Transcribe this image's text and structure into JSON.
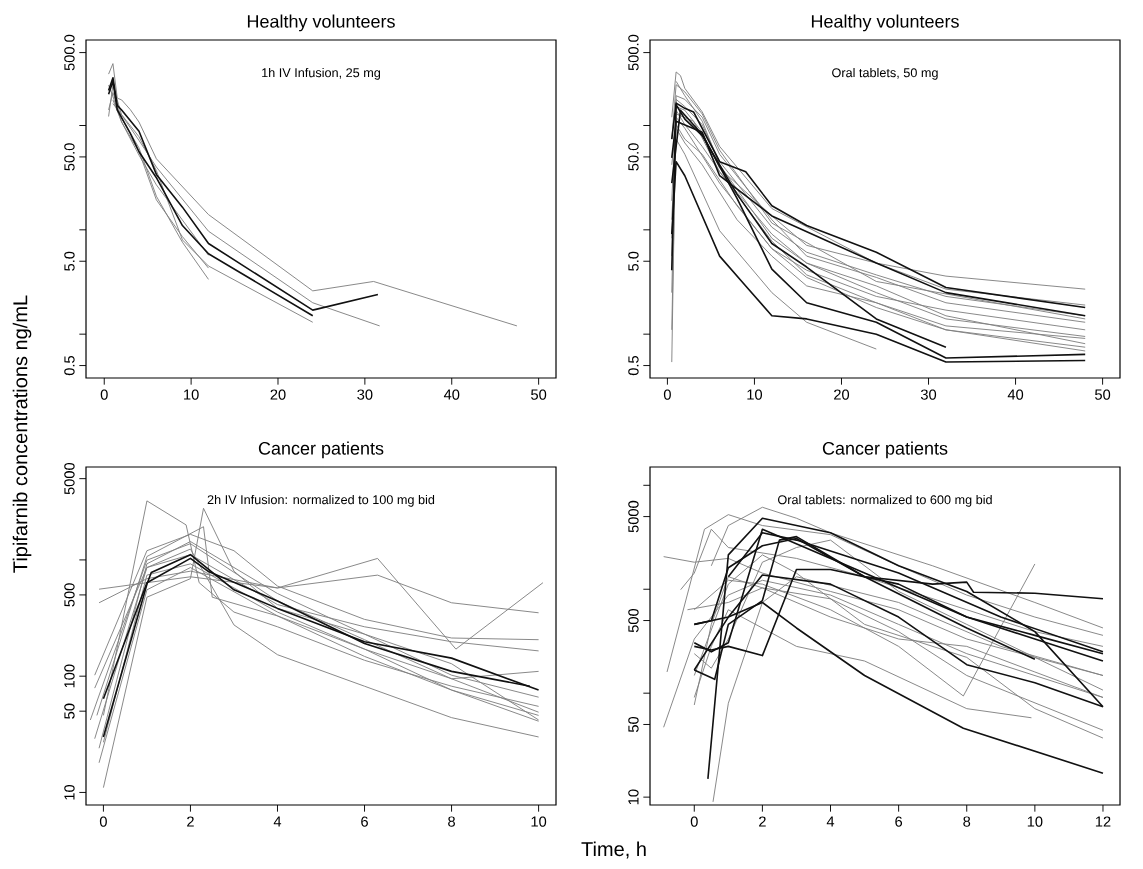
{
  "chart_data": [
    {
      "type": "line",
      "title": "Healthy volunteers",
      "ylabel": "Tipifarnib concentrations  ng/mL",
      "annotations": [
        "1h IV Infusion, 25 mg"
      ],
      "log": true,
      "xlim": [
        -2.1,
        52
      ],
      "ylim": [
        0.38,
        660
      ],
      "xticks": [
        0,
        10,
        20,
        30,
        40,
        50
      ],
      "yticks": [
        {
          "value": 0.5,
          "label": "0.5"
        },
        {
          "value": 1,
          "label": null
        },
        {
          "value": 5,
          "label": "5.0"
        },
        {
          "value": 10,
          "label": null
        },
        {
          "value": 50,
          "label": "50.0"
        },
        {
          "value": 100,
          "label": null
        },
        {
          "value": 500,
          "label": "500.0"
        }
      ],
      "series": [
        {
          "color": "#808080",
          "x": [
            0.5,
            1,
            1.5,
            2,
            3,
            4,
            6,
            12,
            24,
            31,
            47.5
          ],
          "values": [
            311,
            392,
            183,
            176,
            142,
            108,
            48,
            14,
            2.6,
            3.2,
            1.2
          ]
        },
        {
          "color": "#808080",
          "x": [
            0.5,
            1,
            2,
            4,
            6,
            12,
            24,
            31.7
          ],
          "values": [
            122,
            244,
            126,
            72,
            40,
            9.7,
            2.0,
            1.2
          ]
        },
        {
          "color": "#808080",
          "x": [
            0.5,
            1,
            2,
            4,
            6,
            9,
            12
          ],
          "values": [
            141,
            207,
            117,
            61,
            21,
            7.6,
            3.35
          ]
        },
        {
          "color": "#808080",
          "x": [
            0.5,
            1,
            2,
            4,
            6,
            9,
            12
          ],
          "values": [
            244,
            190,
            108,
            56,
            19.4,
            8.6,
            4.3
          ]
        },
        {
          "color": "#808080",
          "x": [
            1,
            2,
            4,
            6,
            12
          ],
          "values": [
            176,
            108,
            52,
            27,
            5.7
          ]
        },
        {
          "color": "#808080",
          "x": [
            1,
            4,
            6,
            9,
            12,
            24
          ],
          "values": [
            162,
            78,
            37,
            8,
            4.5,
            1.3
          ]
        },
        {
          "color": "#111111",
          "x": [
            0.5,
            1,
            1.5,
            2,
            4,
            6,
            9,
            12,
            24,
            31.5
          ],
          "values": [
            216,
            287,
            156,
            141,
            88,
            34,
            16.5,
            7.4,
            1.7,
            2.4
          ]
        },
        {
          "color": "#111111",
          "x": [
            0.5,
            1,
            1.5,
            3,
            4,
            6,
            9,
            12,
            24
          ],
          "values": [
            199,
            265,
            141,
            84,
            56,
            31.6,
            11,
            5.9,
            1.5
          ]
        }
      ]
    },
    {
      "type": "line",
      "title": "Healthy volunteers",
      "annotations": [
        "Oral tablets, 50 mg"
      ],
      "log": true,
      "xlim": [
        -2,
        52
      ],
      "ylim": [
        0.38,
        660
      ],
      "xticks": [
        0,
        10,
        20,
        30,
        40,
        50
      ],
      "yticks": [
        {
          "value": 0.5,
          "label": "0.5"
        },
        {
          "value": 1,
          "label": null
        },
        {
          "value": 5,
          "label": "5.0"
        },
        {
          "value": 10,
          "label": null
        },
        {
          "value": 50,
          "label": "50.0"
        },
        {
          "value": 100,
          "label": null
        },
        {
          "value": 500,
          "label": "500.0"
        }
      ],
      "series": [
        {
          "color": "#808080",
          "x": [
            0.5,
            1,
            1.5,
            2,
            4,
            6,
            12,
            24,
            32,
            48
          ],
          "values": [
            120,
            326,
            301,
            227,
            135,
            63,
            16,
            4.8,
            3.6,
            2.7
          ]
        },
        {
          "color": "#808080",
          "x": [
            0.5,
            1,
            2,
            4,
            6,
            12,
            16,
            24,
            32,
            48
          ],
          "values": [
            0.54,
            193,
            178,
            120,
            53,
            12.5,
            5.6,
            3.5,
            2.0,
            1.3
          ]
        },
        {
          "color": "#808080",
          "x": [
            0.5,
            1,
            2,
            4,
            6,
            12,
            16,
            24,
            32,
            48
          ],
          "values": [
            2.5,
            140,
            102,
            63,
            36,
            9.1,
            4.8,
            2.5,
            1.4,
            0.95
          ]
        },
        {
          "color": "#808080",
          "x": [
            0.5,
            1,
            2,
            4,
            8,
            12,
            16,
            24,
            32,
            48
          ],
          "values": [
            12.5,
            94,
            68,
            42,
            12.5,
            5.6,
            2.9,
            2.0,
            1.1,
            0.75
          ]
        },
        {
          "color": "#808080",
          "x": [
            0.5,
            1,
            2,
            4,
            6,
            12,
            16,
            24,
            32,
            48
          ],
          "values": [
            5.6,
            178,
            152,
            102,
            45,
            10.6,
            6.1,
            3.7,
            2.3,
            1.5
          ]
        },
        {
          "color": "#808080",
          "x": [
            0.5,
            1,
            2,
            6,
            12,
            16,
            24,
            32,
            48
          ],
          "values": [
            1.1,
            120,
            94,
            28,
            6.6,
            4.1,
            2.3,
            1.7,
            1.1
          ]
        },
        {
          "color": "#808080",
          "x": [
            0.5,
            1,
            2,
            4,
            6,
            12,
            24,
            48
          ],
          "values": [
            74,
            246,
            210,
            129,
            58,
            11.6,
            3.2,
            1.4
          ]
        },
        {
          "color": "#808080",
          "x": [
            1,
            2,
            4,
            6,
            12,
            16,
            24,
            32,
            48
          ],
          "values": [
            265,
            193,
            110,
            42,
            8.3,
            4.8,
            2.9,
            1.5,
            0.81
          ]
        },
        {
          "color": "#808080",
          "x": [
            0.5,
            1,
            2,
            6,
            12,
            16,
            24
          ],
          "values": [
            8.3,
            74,
            53,
            9.8,
            2.5,
            1.3,
            0.72
          ]
        },
        {
          "color": "#808080",
          "x": [
            0.5,
            1,
            2,
            4,
            6,
            12,
            16,
            24,
            32,
            48
          ],
          "values": [
            19,
            152,
            140,
            86,
            39,
            13.6,
            7.1,
            4.8,
            2.7,
            1.9
          ]
        },
        {
          "color": "#808080",
          "x": [
            1,
            3,
            6,
            12,
            16,
            24,
            32,
            48
          ],
          "values": [
            129,
            110,
            36,
            7.8,
            3.7,
            2.0,
            1.2,
            0.91
          ]
        },
        {
          "color": "#808080",
          "x": [
            0.5,
            1,
            2,
            4,
            8,
            12,
            16,
            24,
            32,
            48
          ],
          "values": [
            42,
            102,
            74,
            53,
            17,
            6.6,
            3.5,
            1.8,
            1.1,
            0.69
          ]
        },
        {
          "color": "#111111",
          "x": [
            0.5,
            1,
            2,
            3,
            6,
            9,
            12,
            16,
            24,
            32,
            48
          ],
          "values": [
            74,
            164,
            146,
            135,
            45,
            36,
            17,
            11,
            6.1,
            2.8,
            1.8
          ]
        },
        {
          "color": "#111111",
          "x": [
            0.5,
            1,
            4,
            6,
            12,
            24,
            32,
            48
          ],
          "values": [
            49,
            110,
            86,
            33,
            13.6,
            4.8,
            2.5,
            1.5
          ]
        },
        {
          "color": "#111111",
          "x": [
            0.5,
            1,
            2,
            6,
            9,
            12,
            16,
            24,
            32,
            48
          ],
          "values": [
            9.1,
            45,
            33,
            5.6,
            2.9,
            1.5,
            1.4,
            1.0,
            0.54,
            0.56
          ]
        },
        {
          "color": "#111111",
          "x": [
            0.5,
            1,
            2,
            4,
            8,
            12,
            16,
            24,
            32
          ],
          "values": [
            4.1,
            158,
            115,
            80,
            22,
            7.4,
            4.4,
            1.4,
            0.75
          ]
        },
        {
          "color": "#111111",
          "x": [
            0.5,
            1.5,
            4,
            8,
            12,
            16,
            24,
            32,
            48
          ],
          "values": [
            28,
            140,
            82,
            20,
            4.2,
            2.0,
            1.3,
            0.59,
            0.64
          ]
        }
      ]
    },
    {
      "type": "line",
      "title": "Cancer patients",
      "xlabel": "Time, h",
      "annotations": [
        "2h IV Infusion: normalized to 100 mg bid"
      ],
      "log": true,
      "xlim": [
        -0.4,
        10.4
      ],
      "ylim": [
        7.8,
        6300
      ],
      "xticks": [
        0,
        2,
        4,
        6,
        8,
        10
      ],
      "yticks": [
        10,
        50,
        100,
        500,
        {
          "value": 1000,
          "label": null
        },
        5000
      ],
      "series": [
        {
          "color": "#808080",
          "x": [
            0,
            1,
            1.9,
            2.2,
            3,
            4,
            6,
            8,
            10
          ],
          "values": [
            46,
            3220,
            2000,
            637,
            356,
            266,
            137,
            82,
            55
          ]
        },
        {
          "color": "#808080",
          "x": [
            -0.1,
            2,
            4,
            6.3,
            8,
            10
          ],
          "values": [
            560,
            716,
            574,
            740,
            428,
            351
          ]
        },
        {
          "color": "#808080",
          "x": [
            -0.1,
            1,
            2,
            4,
            6.3,
            8.1,
            10.1
          ],
          "values": [
            428,
            690,
            800,
            574,
            1030,
            171,
            637
          ]
        },
        {
          "color": "#808080",
          "x": [
            0,
            1,
            2,
            2.3,
            3,
            4,
            6,
            8,
            10
          ],
          "values": [
            11,
            478,
            690,
            2780,
            800,
            383,
            230,
            128,
            42
          ]
        },
        {
          "color": "#808080",
          "x": [
            -0.2,
            1,
            2,
            3,
            4,
            6,
            8,
            10
          ],
          "values": [
            102,
            1200,
            1660,
            1200,
            596,
            308,
            213,
            206
          ]
        },
        {
          "color": "#808080",
          "x": [
            -0.15,
            1,
            2.3,
            2.5,
            4,
            6,
            8,
            10
          ],
          "values": [
            46,
            1070,
            1930,
            478,
            330,
            171,
            76,
            46
          ]
        },
        {
          "color": "#808080",
          "x": [
            -0.2,
            1,
            2,
            3,
            4,
            6,
            8,
            10
          ],
          "values": [
            29,
            860,
            1240,
            276,
            153,
            82,
            44,
            30
          ]
        },
        {
          "color": "#808080",
          "x": [
            -0.1,
            1,
            2,
            4,
            6,
            8,
            10
          ],
          "values": [
            24,
            925,
            1440,
            514,
            230,
            102,
            66
          ]
        },
        {
          "color": "#808080",
          "x": [
            -0.3,
            1,
            2,
            4,
            6,
            8,
            10
          ],
          "values": [
            42,
            995,
            1380,
            444,
            206,
            95,
            49
          ]
        },
        {
          "color": "#808080",
          "x": [
            -0.2,
            1,
            2,
            4,
            6,
            8,
            10
          ],
          "values": [
            79,
            860,
            1110,
            413,
            266,
            198,
            165
          ]
        },
        {
          "color": "#808080",
          "x": [
            0,
            1,
            2,
            4,
            6,
            8,
            10
          ],
          "values": [
            27,
            740,
            925,
            356,
            171,
            95,
            110
          ]
        },
        {
          "color": "#808080",
          "x": [
            -0.1,
            1,
            2,
            4,
            6,
            8,
            10
          ],
          "values": [
            18,
            553,
            860,
            330,
            148,
            76,
            41
          ]
        },
        {
          "color": "#111111",
          "x": [
            0,
            1,
            1.1,
            2,
            3,
            4,
            6,
            8,
            10
          ],
          "values": [
            30,
            618,
            780,
            1110,
            553,
            383,
            198,
            143,
            76
          ]
        },
        {
          "color": "#111111",
          "x": [
            0,
            1,
            2,
            2.4,
            4,
            6,
            8,
            9.8
          ],
          "values": [
            64,
            637,
            1030,
            800,
            444,
            191,
            110,
            82
          ]
        }
      ]
    },
    {
      "type": "line",
      "title": "Cancer patients",
      "annotations": [
        "Oral tablets: normalized to 600 mg bid"
      ],
      "log": true,
      "xlim": [
        -1.3,
        12.5
      ],
      "ylim": [
        8.4,
        15000
      ],
      "xticks": [
        0,
        2,
        4,
        6,
        8,
        10,
        12
      ],
      "yticks": [
        10,
        50,
        {
          "value": 100,
          "label": null
        },
        500,
        {
          "value": 1000,
          "label": null
        },
        5000,
        {
          "value": 10000,
          "label": null
        }
      ],
      "series": [
        {
          "color": "#808080",
          "x": [
            -0.9,
            0,
            1,
            2,
            4,
            6,
            8,
            10,
            12
          ],
          "values": [
            2060,
            1820,
            1980,
            1430,
            952,
            635,
            332,
            221,
            148
          ]
        },
        {
          "color": "#808080",
          "x": [
            -0.8,
            0.3,
            1,
            2,
            4,
            6,
            8,
            10,
            12
          ],
          "values": [
            160,
            3780,
            5220,
            4100,
            3350,
            1680,
            879,
            540,
            360
          ]
        },
        {
          "color": "#808080",
          "x": [
            -0.4,
            0,
            0.5,
            1,
            3,
            5,
            8,
            10,
            12
          ],
          "values": [
            990,
            1430,
            3780,
            2520,
            1980,
            1320,
            635,
            391,
            282
          ]
        },
        {
          "color": "#808080",
          "x": [
            0,
            1,
            2,
            4,
            6,
            7.9,
            10
          ],
          "values": [
            635,
            1220,
            1120,
            635,
            282,
            94,
            1750
          ]
        },
        {
          "color": "#808080",
          "x": [
            -0.9,
            0,
            1,
            2,
            4,
            6,
            8,
            12
          ],
          "values": [
            47,
            332,
            879,
            1220,
            879,
            459,
            240,
            91
          ]
        },
        {
          "color": "#808080",
          "x": [
            0.55,
            1,
            2,
            3,
            6,
            9,
            12
          ],
          "values": [
            9.0,
            80,
            746,
            1320,
            746,
            282,
            148
          ]
        },
        {
          "color": "#808080",
          "x": [
            0,
            0.5,
            1,
            2,
            3,
            4,
            6,
            8,
            10,
            12
          ],
          "values": [
            240,
            174,
            332,
            1820,
            2520,
            2970,
            952,
            459,
            221,
            107
          ]
        },
        {
          "color": "#808080",
          "x": [
            0,
            1,
            2,
            3,
            5,
            8,
            10,
            12
          ],
          "values": [
            148,
            1120,
            2140,
            1430,
            459,
            221,
            71,
            37
          ]
        },
        {
          "color": "#808080",
          "x": [
            0.5,
            1,
            2,
            3,
            4,
            7,
            10,
            12
          ],
          "values": [
            1680,
            4100,
            6150,
            4820,
            3490,
            1680,
            746,
            424
          ]
        },
        {
          "color": "#808080",
          "x": [
            0,
            0.5,
            1,
            3,
            5,
            8,
            9.9
          ],
          "values": [
            91,
            282,
            635,
            282,
            204,
            71,
            58
          ]
        },
        {
          "color": "#808080",
          "x": [
            -0.2,
            1,
            2,
            4,
            6,
            8,
            12
          ],
          "values": [
            635,
            746,
            1030,
            809,
            391,
            148,
            44
          ]
        },
        {
          "color": "#808080",
          "x": [
            0,
            0.5,
            1,
            2,
            4,
            6,
            8,
            10,
            12
          ],
          "values": [
            77,
            459,
            1320,
            1030,
            540,
            332,
            282,
            160,
            91
          ]
        },
        {
          "color": "#111111",
          "x": [
            0,
            0.5,
            1,
            2,
            3,
            5,
            7,
            8,
            8.2,
            10,
            12
          ],
          "values": [
            459,
            498,
            1610,
            2620,
            3080,
            1320,
            1120,
            1170,
            937,
            915,
            809
          ]
        },
        {
          "color": "#111111",
          "x": [
            0,
            0.5,
            1,
            2,
            5,
            8,
            10,
            12
          ],
          "values": [
            306,
            250,
            306,
            3780,
            1430,
            540,
            360,
            240
          ]
        },
        {
          "color": "#111111",
          "x": [
            0,
            0.5,
            1,
            2,
            3,
            4,
            6,
            8,
            10,
            12
          ],
          "values": [
            282,
            260,
            282,
            230,
            1550,
            1550,
            1120,
            540,
            332,
            204
          ]
        },
        {
          "color": "#111111",
          "x": [
            0,
            0.6,
            1,
            2,
            2.5,
            3,
            5,
            8,
            10
          ],
          "values": [
            167,
            136,
            459,
            778,
            2970,
            3210,
            1320,
            424,
            212
          ]
        },
        {
          "color": "#111111",
          "x": [
            0.4,
            1,
            2,
            4,
            6,
            8,
            10,
            12
          ],
          "values": [
            15,
            2140,
            4820,
            3490,
            1680,
            952,
            391,
            74
          ]
        },
        {
          "color": "#111111",
          "x": [
            0,
            1,
            2,
            4,
            6,
            8,
            10,
            12
          ],
          "values": [
            167,
            540,
            1370,
            1120,
            540,
            188,
            126,
            74
          ]
        },
        {
          "color": "#111111",
          "x": [
            0,
            1,
            2,
            3,
            5,
            7.9,
            12
          ],
          "values": [
            459,
            540,
            746,
            424,
            148,
            46,
            17
          ]
        },
        {
          "color": "#111111",
          "x": [
            1,
            2,
            3,
            6,
            9,
            12
          ],
          "values": [
            1320,
            3490,
            2970,
            1430,
            540,
            250
          ]
        }
      ]
    }
  ]
}
